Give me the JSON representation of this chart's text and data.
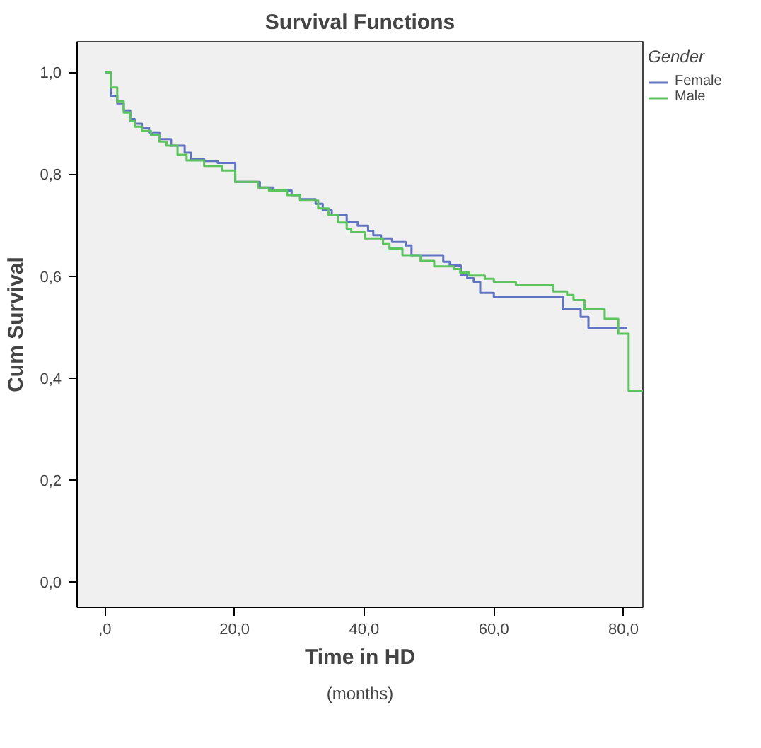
{
  "chart_data": {
    "type": "step",
    "title": "Survival Functions",
    "xlabel": "Time in HD",
    "ylabel": "Cum Survival",
    "legend_title": "Gender",
    "annotations": [
      "(months)"
    ],
    "xlim": [
      -4.3,
      83
    ],
    "ylim": [
      -0.05,
      1.06
    ],
    "xticks": [
      {
        "value": 0,
        "label": ",0"
      },
      {
        "value": 20,
        "label": "20,0"
      },
      {
        "value": 40,
        "label": "40,0"
      },
      {
        "value": 60,
        "label": "60,0"
      },
      {
        "value": 80,
        "label": "80,0"
      }
    ],
    "yticks": [
      {
        "value": 0,
        "label": "0,0"
      },
      {
        "value": 0.2,
        "label": "0,2"
      },
      {
        "value": 0.4,
        "label": "0,4"
      },
      {
        "value": 0.6,
        "label": "0,6"
      },
      {
        "value": 0.8,
        "label": "0,8"
      },
      {
        "value": 1,
        "label": "1,0"
      }
    ],
    "grid": false,
    "legend": "top right",
    "marker": "none",
    "line_style": "solid",
    "series": [
      {
        "name": "Female",
        "color": "#6174c2",
        "x": [
          0,
          0.9,
          1.9,
          2.9,
          3.9,
          4.6,
          5.7,
          6.8,
          8.4,
          10.2,
          12.3,
          13.3,
          15.3,
          17.4,
          20.1,
          23.9,
          26,
          28.8,
          30.1,
          32.5,
          33.6,
          35,
          37.3,
          39,
          40.6,
          41.4,
          42.6,
          44.3,
          46.4,
          47.3,
          52.2,
          53.2,
          54.9,
          55.9,
          56.9,
          57.9,
          60,
          70.7,
          73.4,
          74.6,
          80.6
        ],
        "values": [
          1,
          0.954,
          0.939,
          0.925,
          0.908,
          0.899,
          0.891,
          0.882,
          0.869,
          0.856,
          0.842,
          0.83,
          0.826,
          0.822,
          0.785,
          0.774,
          0.768,
          0.759,
          0.751,
          0.742,
          0.729,
          0.72,
          0.706,
          0.699,
          0.689,
          0.68,
          0.674,
          0.667,
          0.66,
          0.641,
          0.628,
          0.621,
          0.602,
          0.596,
          0.589,
          0.567,
          0.559,
          0.535,
          0.52,
          0.498,
          0.498
        ]
      },
      {
        "name": "Male",
        "color": "#5cc45c",
        "x": [
          0,
          0.9,
          1.9,
          2.9,
          3.9,
          4.6,
          5.7,
          7.1,
          8.4,
          9.5,
          11.2,
          12.6,
          15.3,
          18.1,
          20.1,
          23.6,
          25.3,
          28.1,
          30.1,
          32.9,
          34.5,
          36,
          37.3,
          38,
          40.1,
          42.9,
          43.9,
          45.9,
          48.7,
          50.8,
          53.8,
          54.8,
          56.2,
          58.6,
          60,
          63.4,
          69.2,
          71.3,
          72.3,
          74,
          77.1,
          79.2,
          80.8,
          83
        ],
        "values": [
          1,
          0.97,
          0.943,
          0.921,
          0.904,
          0.893,
          0.885,
          0.876,
          0.864,
          0.856,
          0.838,
          0.827,
          0.816,
          0.807,
          0.785,
          0.774,
          0.768,
          0.759,
          0.748,
          0.733,
          0.72,
          0.705,
          0.693,
          0.686,
          0.674,
          0.663,
          0.654,
          0.641,
          0.63,
          0.619,
          0.614,
          0.607,
          0.601,
          0.595,
          0.589,
          0.583,
          0.57,
          0.563,
          0.553,
          0.535,
          0.516,
          0.487,
          0.375,
          0.375
        ]
      }
    ]
  }
}
